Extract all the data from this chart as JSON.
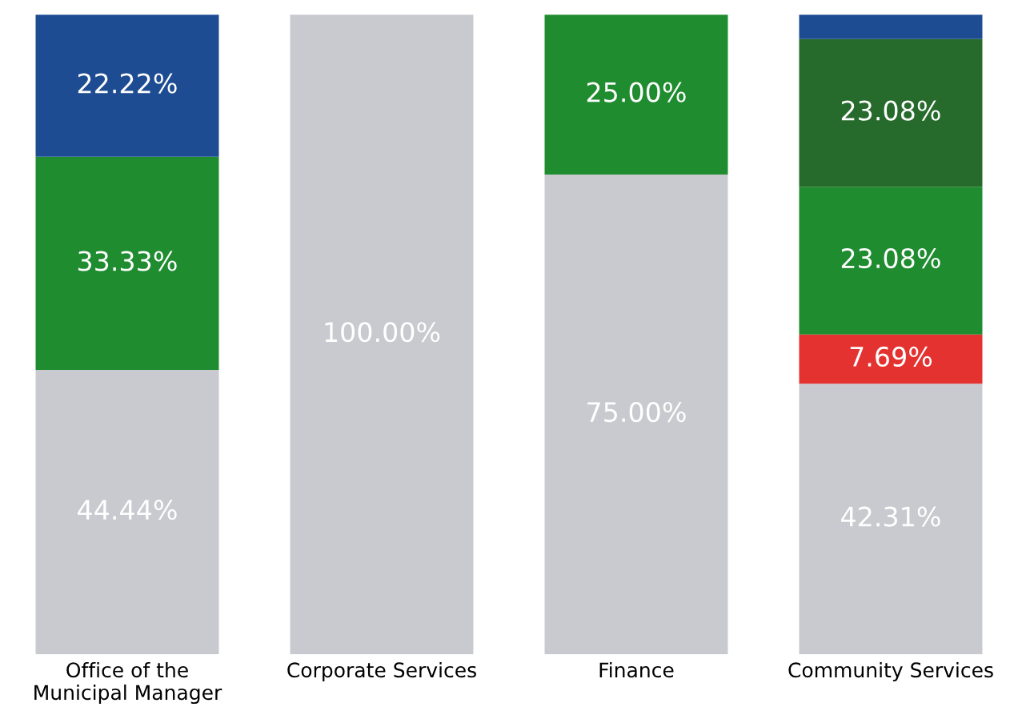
{
  "chart_data": {
    "type": "bar",
    "stacked": true,
    "categories": [
      "Office of the\nMunicipal Manager",
      "Corporate Services",
      "Finance",
      "Community Services"
    ],
    "series": [
      {
        "color": "#c9cacf",
        "values": [
          44.44,
          100,
          75,
          42.31
        ],
        "value_labels": [
          "44.44%",
          "100.00%",
          "75.00%",
          "42.31%"
        ]
      },
      {
        "color": "#e3322f",
        "values": [
          null,
          null,
          null,
          7.69
        ],
        "value_labels": [
          null,
          null,
          null,
          "7.69%"
        ]
      },
      {
        "color": "#1f8c30",
        "values": [
          33.33,
          null,
          25,
          23.08
        ],
        "value_labels": [
          "33.33%",
          null,
          "25.00%",
          "23.08%"
        ]
      },
      {
        "color": "#266b2b",
        "values": [
          null,
          null,
          null,
          23.08
        ],
        "value_labels": [
          null,
          null,
          null,
          "23.08%"
        ]
      },
      {
        "color": "#1e4c93",
        "values": [
          22.22,
          null,
          null,
          3.84
        ],
        "value_labels": [
          "22.22%",
          null,
          null,
          null
        ]
      }
    ],
    "ylim": [
      0,
      100
    ],
    "tick_labels": "x",
    "grid": false,
    "legend": false
  }
}
